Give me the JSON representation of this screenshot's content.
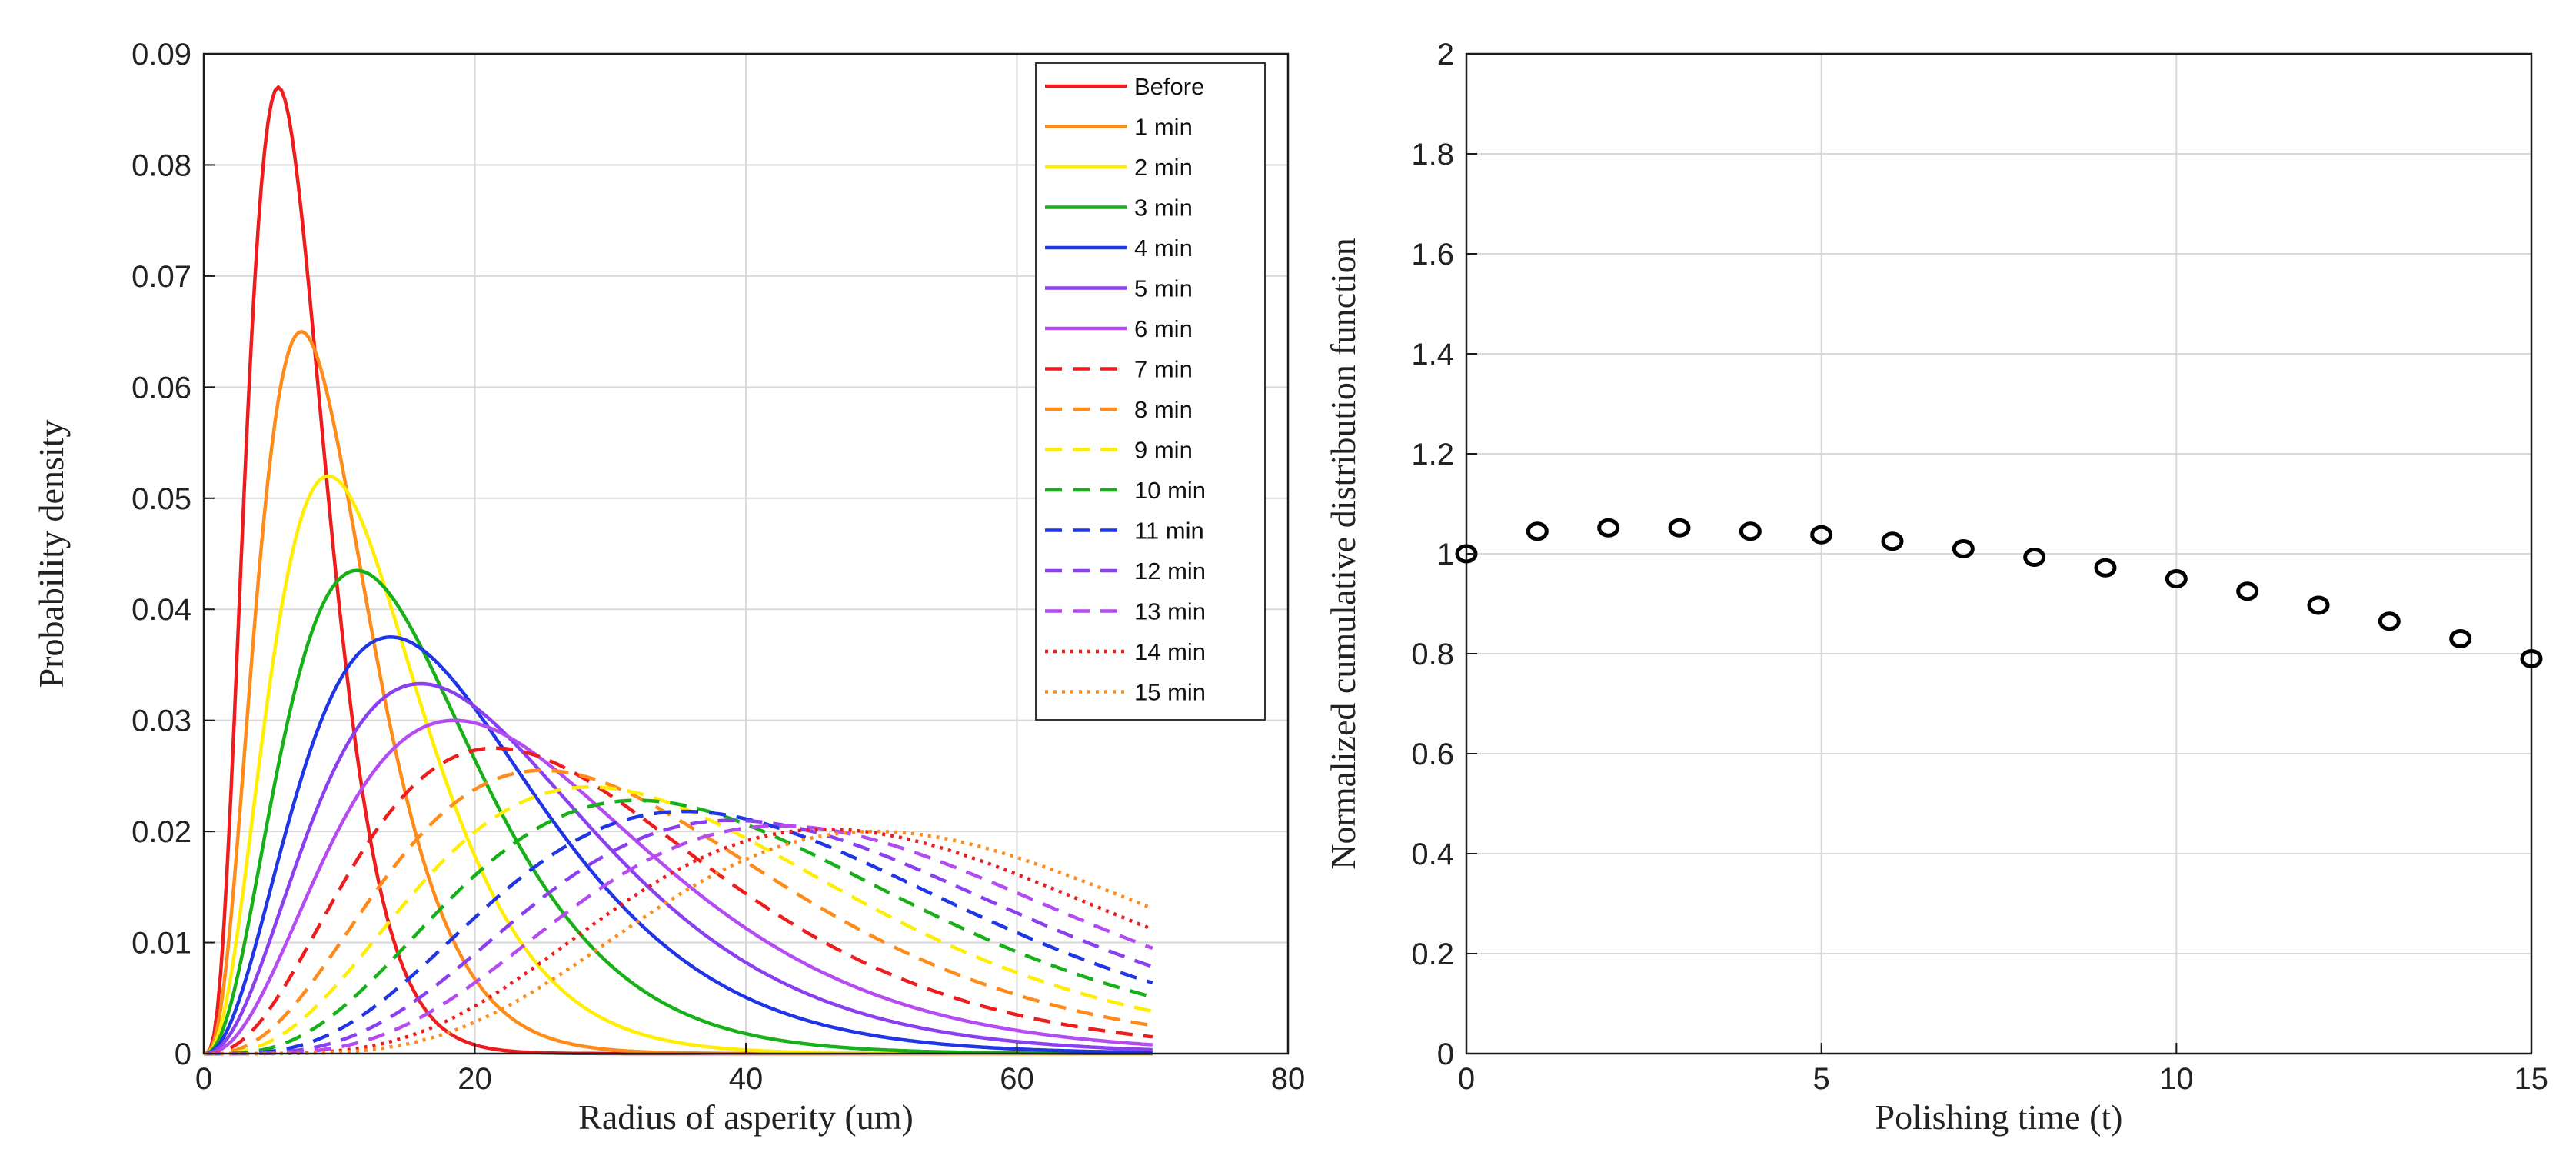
{
  "chart_data": [
    {
      "type": "line",
      "title": "",
      "xlabel": "Radius of asperity (um)",
      "ylabel": "Probability density",
      "xlim": [
        0,
        80
      ],
      "ylim": [
        0,
        0.09
      ],
      "xticks": [
        "0",
        "20",
        "40",
        "60",
        "80"
      ],
      "yticks": [
        "0",
        "0.01",
        "0.02",
        "0.03",
        "0.04",
        "0.05",
        "0.06",
        "0.07",
        "0.08",
        "0.09"
      ],
      "grid": true,
      "legend_position": "top-right",
      "curve_model": "gamma-shaped density, x range 0-70",
      "series": [
        {
          "name": "Before",
          "color": "#ee1c1c",
          "style": "solid",
          "peak_x": 5.5,
          "peak_y": 0.087,
          "shape": 4.5
        },
        {
          "name": "1 min",
          "color": "#ff8c1a",
          "style": "solid",
          "peak_x": 7.2,
          "peak_y": 0.065,
          "shape": 4.0
        },
        {
          "name": "2 min",
          "color": "#ffee00",
          "style": "solid",
          "peak_x": 9.2,
          "peak_y": 0.052,
          "shape": 3.7
        },
        {
          "name": "3 min",
          "color": "#18b018",
          "style": "solid",
          "peak_x": 11.3,
          "peak_y": 0.0435,
          "shape": 3.5
        },
        {
          "name": "4 min",
          "color": "#1f35e6",
          "style": "solid",
          "peak_x": 13.8,
          "peak_y": 0.0375,
          "shape": 3.4
        },
        {
          "name": "5 min",
          "color": "#8a3ff0",
          "style": "solid",
          "peak_x": 16.0,
          "peak_y": 0.0333,
          "shape": 3.4
        },
        {
          "name": "6 min",
          "color": "#b44cf2",
          "style": "solid",
          "peak_x": 18.5,
          "peak_y": 0.03,
          "shape": 3.5
        },
        {
          "name": "7 min",
          "color": "#ee1c1c",
          "style": "dashed",
          "peak_x": 21.5,
          "peak_y": 0.0275,
          "shape": 3.7
        },
        {
          "name": "8 min",
          "color": "#ff8c1a",
          "style": "dashed",
          "peak_x": 25.0,
          "peak_y": 0.0255,
          "shape": 4.0
        },
        {
          "name": "9 min",
          "color": "#ffee00",
          "style": "dashed",
          "peak_x": 28.5,
          "peak_y": 0.024,
          "shape": 4.3
        },
        {
          "name": "10 min",
          "color": "#18b018",
          "style": "dashed",
          "peak_x": 32.0,
          "peak_y": 0.0228,
          "shape": 4.7
        },
        {
          "name": "11 min",
          "color": "#1f35e6",
          "style": "dashed",
          "peak_x": 35.5,
          "peak_y": 0.0218,
          "shape": 5.2
        },
        {
          "name": "12 min",
          "color": "#8a3ff0",
          "style": "dashed",
          "peak_x": 39.0,
          "peak_y": 0.021,
          "shape": 5.7
        },
        {
          "name": "13 min",
          "color": "#b44cf2",
          "style": "dashed",
          "peak_x": 42.5,
          "peak_y": 0.0205,
          "shape": 6.2
        },
        {
          "name": "14 min",
          "color": "#ee1c1c",
          "style": "dotted",
          "peak_x": 46.0,
          "peak_y": 0.0202,
          "shape": 6.8
        },
        {
          "name": "15 min",
          "color": "#ff8c1a",
          "style": "dotted",
          "peak_x": 49.5,
          "peak_y": 0.02,
          "shape": 7.3
        }
      ]
    },
    {
      "type": "scatter",
      "title": "",
      "xlabel": "Polishing time (t)",
      "ylabel": "Normalized cumulative distribution function",
      "xlim": [
        0,
        15
      ],
      "ylim": [
        0,
        2
      ],
      "xticks": [
        "0",
        "5",
        "10",
        "15"
      ],
      "yticks": [
        "0",
        "0.2",
        "0.4",
        "0.6",
        "0.8",
        "1",
        "1.2",
        "1.4",
        "1.6",
        "1.8",
        "2"
      ],
      "grid": true,
      "marker": "circle-open",
      "x": [
        0,
        1,
        2,
        3,
        4,
        5,
        6,
        7,
        8,
        9,
        10,
        11,
        12,
        13,
        14,
        15
      ],
      "values": [
        1.0,
        1.045,
        1.052,
        1.052,
        1.045,
        1.038,
        1.025,
        1.01,
        0.993,
        0.972,
        0.95,
        0.925,
        0.897,
        0.865,
        0.83,
        0.79
      ]
    }
  ]
}
